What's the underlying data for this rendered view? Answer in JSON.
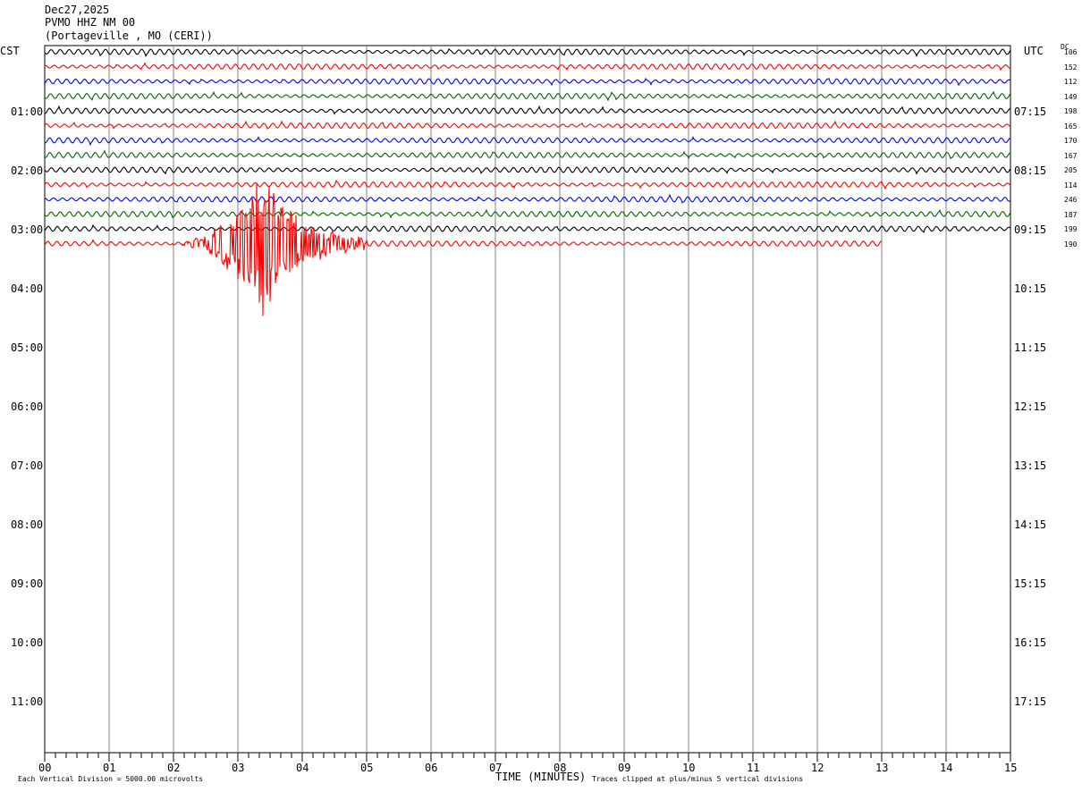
{
  "header": {
    "date": "Dec27,2025",
    "station": "PVMO HHZ NM 00",
    "location": "(Portageville , MO (CERI))"
  },
  "left_axis_label": "CST",
  "right_axis_label": "UTC",
  "dc_label": "DC",
  "footer": {
    "xlabel": "TIME (MINUTES)",
    "division_note": "Each Vertical Division = 5000.00 microvolts",
    "clip_note": "Traces clipped at plus/minus 5 vertical divisions"
  },
  "colors": {
    "line1": "#000000",
    "line2": "#ff0000",
    "line3": "#0000ff",
    "line4": "#006400",
    "grid": "#808080"
  },
  "chart_data": {
    "type": "line",
    "title": "PVMO HHZ NM 00",
    "xlabel": "TIME (MINUTES)",
    "xlim": [
      0,
      15
    ],
    "x_ticks": [
      "00",
      "01",
      "02",
      "03",
      "04",
      "05",
      "06",
      "07",
      "08",
      "09",
      "10",
      "11",
      "12",
      "13",
      "14",
      "15"
    ],
    "cst_hours": [
      "01:00",
      "02:00",
      "03:00",
      "04:00",
      "05:00",
      "06:00",
      "07:00",
      "08:00",
      "09:00",
      "10:00",
      "11:00"
    ],
    "utc_hours": [
      "07:15",
      "08:15",
      "09:15",
      "10:15",
      "11:15",
      "12:15",
      "13:15",
      "14:15",
      "15:15",
      "16:15",
      "17:15"
    ],
    "hour_rows_per_hour": 4,
    "traces": [
      {
        "row": 0,
        "color": "black",
        "dc": "106",
        "end_minute": 15
      },
      {
        "row": 1,
        "color": "red",
        "dc": "152",
        "end_minute": 15
      },
      {
        "row": 2,
        "color": "blue",
        "dc": "112",
        "end_minute": 15
      },
      {
        "row": 3,
        "color": "green",
        "dc": "149",
        "end_minute": 15
      },
      {
        "row": 4,
        "color": "black",
        "dc": "198",
        "end_minute": 15
      },
      {
        "row": 5,
        "color": "red",
        "dc": "165",
        "end_minute": 15
      },
      {
        "row": 6,
        "color": "blue",
        "dc": "170",
        "end_minute": 15
      },
      {
        "row": 7,
        "color": "green",
        "dc": "167",
        "end_minute": 15
      },
      {
        "row": 8,
        "color": "black",
        "dc": "205",
        "end_minute": 15
      },
      {
        "row": 9,
        "color": "red",
        "dc": "114",
        "end_minute": 15
      },
      {
        "row": 10,
        "color": "blue",
        "dc": "246",
        "end_minute": 15
      },
      {
        "row": 11,
        "color": "green",
        "dc": "187",
        "end_minute": 15
      },
      {
        "row": 12,
        "color": "black",
        "dc": "199",
        "end_minute": 15
      },
      {
        "row": 13,
        "color": "red",
        "dc": "190",
        "end_minute": 13
      }
    ],
    "event": {
      "row": 13,
      "start_minute": 2.0,
      "peak_minute": 3.4,
      "end_minute": 5.0,
      "peak_amplitude_divisions": 5
    }
  }
}
